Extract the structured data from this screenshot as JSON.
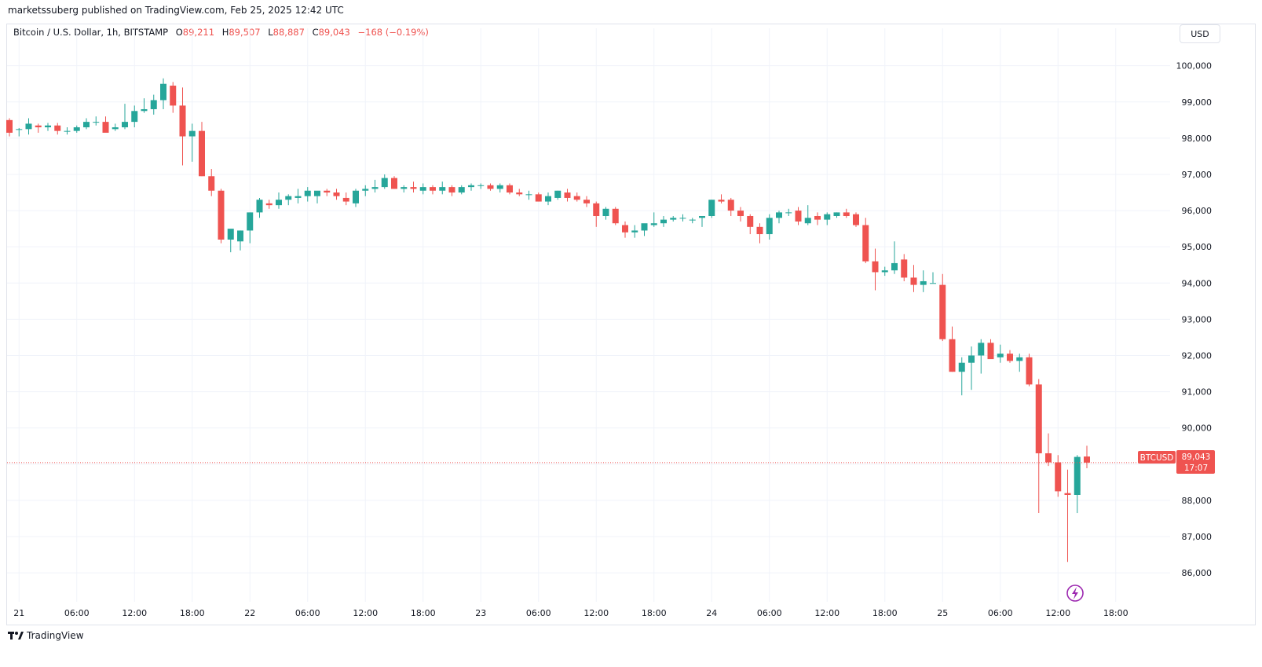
{
  "header": {
    "caption": "marketssuberg published on TradingView.com, Feb 25, 2025 12:42 UTC",
    "symbol_title": "Bitcoin / U.S. Dollar, 1h, BITSTAMP",
    "ohlc": {
      "o_label": "O",
      "o": "89,211",
      "h_label": "H",
      "h": "89,507",
      "l_label": "L",
      "l": "88,887",
      "c_label": "C",
      "c": "89,043",
      "change": "−168 (−0.19%)"
    },
    "currency": "USD"
  },
  "price_tag": {
    "symbol": "BTCUSD",
    "price": "89,043",
    "countdown": "17:07"
  },
  "footer": {
    "brand": "TradingView"
  },
  "colors": {
    "up": "#26a69a",
    "down": "#ef5350",
    "grid": "#f0f3fa",
    "price_line": "#ef5350",
    "tag_bg": "#ef5350"
  },
  "chart_data": {
    "type": "candlestick",
    "title": "Bitcoin / U.S. Dollar, 1h, BITSTAMP",
    "ylim": [
      85200,
      100600
    ],
    "y_ticks": [
      "100,000",
      "99,000",
      "98,000",
      "97,000",
      "96,000",
      "95,000",
      "94,000",
      "93,000",
      "92,000",
      "91,000",
      "90,000",
      "89,000",
      "88,000",
      "87,000",
      "86,000"
    ],
    "y_tick_values": [
      100000,
      99000,
      98000,
      97000,
      96000,
      95000,
      94000,
      93000,
      92000,
      91000,
      90000,
      89000,
      88000,
      87000,
      86000
    ],
    "x_ticks": [
      "21",
      "06:00",
      "12:00",
      "18:00",
      "22",
      "06:00",
      "12:00",
      "18:00",
      "23",
      "06:00",
      "12:00",
      "18:00",
      "24",
      "06:00",
      "12:00",
      "18:00",
      "25",
      "06:00",
      "12:00",
      "18:00"
    ],
    "x_tick_hours": [
      0,
      6,
      12,
      18,
      24,
      30,
      36,
      42,
      48,
      54,
      60,
      66,
      72,
      78,
      84,
      90,
      96,
      102,
      108,
      114
    ],
    "start_label": "Feb 20, 23:00 UTC",
    "candles": [
      [
        98500,
        98550,
        98050,
        98150
      ],
      [
        98250,
        98280,
        98050,
        98250
      ],
      [
        98250,
        98550,
        98100,
        98400
      ],
      [
        98350,
        98400,
        98150,
        98300
      ],
      [
        98300,
        98420,
        98200,
        98350
      ],
      [
        98350,
        98420,
        98100,
        98200
      ],
      [
        98200,
        98300,
        98100,
        98200
      ],
      [
        98200,
        98350,
        98150,
        98300
      ],
      [
        98300,
        98550,
        98250,
        98450
      ],
      [
        98450,
        98600,
        98350,
        98450
      ],
      [
        98450,
        98600,
        98250,
        98150
      ],
      [
        98250,
        98400,
        98200,
        98300
      ],
      [
        98300,
        98950,
        98250,
        98450
      ],
      [
        98450,
        98900,
        98300,
        98750
      ],
      [
        98750,
        99100,
        98700,
        98800
      ],
      [
        98800,
        99200,
        98650,
        99050
      ],
      [
        99050,
        99650,
        98800,
        99500
      ],
      [
        99450,
        99550,
        98700,
        98900
      ],
      [
        98900,
        99400,
        97250,
        98050
      ],
      [
        98050,
        98400,
        97350,
        98200
      ],
      [
        98200,
        98450,
        96950,
        96950
      ],
      [
        96950,
        97150,
        96400,
        96550
      ],
      [
        96550,
        96600,
        95100,
        95200
      ],
      [
        95200,
        95350,
        94850,
        95500
      ],
      [
        95150,
        95450,
        94900,
        95450
      ],
      [
        95450,
        95950,
        95100,
        95950
      ],
      [
        95950,
        96350,
        95800,
        96300
      ],
      [
        96200,
        96300,
        96050,
        96150
      ],
      [
        96150,
        96500,
        96050,
        96300
      ],
      [
        96300,
        96450,
        96150,
        96400
      ],
      [
        96350,
        96600,
        96200,
        96400
      ],
      [
        96400,
        96650,
        96250,
        96550
      ],
      [
        96400,
        96500,
        96200,
        96550
      ],
      [
        96550,
        96600,
        96400,
        96500
      ],
      [
        96500,
        96600,
        96300,
        96400
      ],
      [
        96350,
        96500,
        96150,
        96250
      ],
      [
        96200,
        96600,
        96100,
        96550
      ],
      [
        96550,
        96700,
        96400,
        96600
      ],
      [
        96600,
        96850,
        96500,
        96650
      ],
      [
        96650,
        97000,
        96600,
        96900
      ],
      [
        96900,
        96950,
        96600,
        96600
      ],
      [
        96600,
        96700,
        96500,
        96650
      ],
      [
        96650,
        96800,
        96500,
        96600
      ],
      [
        96550,
        96750,
        96450,
        96650
      ],
      [
        96650,
        96700,
        96450,
        96550
      ],
      [
        96550,
        96800,
        96450,
        96650
      ],
      [
        96650,
        96700,
        96400,
        96500
      ],
      [
        96500,
        96700,
        96450,
        96650
      ],
      [
        96650,
        96750,
        96550,
        96700
      ],
      [
        96700,
        96750,
        96600,
        96700
      ],
      [
        96700,
        96750,
        96550,
        96600
      ],
      [
        96600,
        96750,
        96500,
        96700
      ],
      [
        96700,
        96750,
        96450,
        96500
      ],
      [
        96500,
        96600,
        96400,
        96450
      ],
      [
        96450,
        96550,
        96300,
        96450
      ],
      [
        96450,
        96500,
        96250,
        96250
      ],
      [
        96250,
        96500,
        96150,
        96400
      ],
      [
        96350,
        96550,
        96300,
        96550
      ],
      [
        96500,
        96600,
        96250,
        96350
      ],
      [
        96400,
        96500,
        96250,
        96300
      ],
      [
        96300,
        96400,
        96100,
        96200
      ],
      [
        96200,
        96250,
        95550,
        95850
      ],
      [
        95850,
        96100,
        95750,
        96050
      ],
      [
        96050,
        96100,
        95600,
        95650
      ],
      [
        95600,
        95700,
        95250,
        95400
      ],
      [
        95400,
        95600,
        95250,
        95450
      ],
      [
        95450,
        95550,
        95300,
        95650
      ],
      [
        95600,
        95950,
        95550,
        95650
      ],
      [
        95650,
        95850,
        95550,
        95750
      ],
      [
        95750,
        95850,
        95700,
        95800
      ],
      [
        95800,
        95900,
        95700,
        95800
      ],
      [
        95750,
        95800,
        95650,
        95750
      ],
      [
        95800,
        95850,
        95550,
        95850
      ],
      [
        95850,
        96300,
        95800,
        96300
      ],
      [
        96300,
        96450,
        96200,
        96250
      ],
      [
        96300,
        96350,
        95850,
        96000
      ],
      [
        96000,
        96100,
        95700,
        95850
      ],
      [
        95850,
        95900,
        95350,
        95550
      ],
      [
        95550,
        95650,
        95100,
        95350
      ],
      [
        95350,
        95900,
        95200,
        95800
      ],
      [
        95800,
        96000,
        95650,
        95950
      ],
      [
        95950,
        96050,
        95850,
        95950
      ],
      [
        96000,
        96100,
        95600,
        95700
      ],
      [
        95650,
        96150,
        95600,
        95800
      ],
      [
        95850,
        95950,
        95600,
        95750
      ],
      [
        95750,
        95950,
        95600,
        95900
      ],
      [
        95850,
        95950,
        95800,
        95950
      ],
      [
        95950,
        96050,
        95800,
        95850
      ],
      [
        95900,
        95950,
        95550,
        95600
      ],
      [
        95600,
        95800,
        94550,
        94600
      ],
      [
        94600,
        94950,
        93800,
        94300
      ],
      [
        94300,
        94450,
        94200,
        94350
      ],
      [
        94350,
        95150,
        94250,
        94550
      ],
      [
        94650,
        94800,
        94050,
        94150
      ],
      [
        94150,
        94500,
        93750,
        93950
      ],
      [
        93950,
        94350,
        93750,
        94050
      ],
      [
        94000,
        94300,
        94000,
        94000
      ],
      [
        93950,
        94250,
        92400,
        92450
      ],
      [
        92450,
        92800,
        91550,
        91550
      ],
      [
        91550,
        91950,
        90900,
        91800
      ],
      [
        91800,
        92250,
        91050,
        92000
      ],
      [
        92000,
        92450,
        91500,
        92350
      ],
      [
        92350,
        92450,
        92050,
        91900
      ],
      [
        91950,
        92300,
        91800,
        92050
      ],
      [
        92050,
        92150,
        91800,
        91850
      ],
      [
        91850,
        92050,
        91550,
        91950
      ],
      [
        91950,
        92050,
        91150,
        91200
      ],
      [
        91200,
        91350,
        87650,
        89300
      ],
      [
        89300,
        89850,
        88950,
        89050
      ],
      [
        89050,
        89250,
        88100,
        88250
      ],
      [
        88200,
        88850,
        86300,
        88150
      ],
      [
        88150,
        89250,
        87650,
        89200
      ],
      [
        89211,
        89507,
        88887,
        89043
      ]
    ]
  }
}
